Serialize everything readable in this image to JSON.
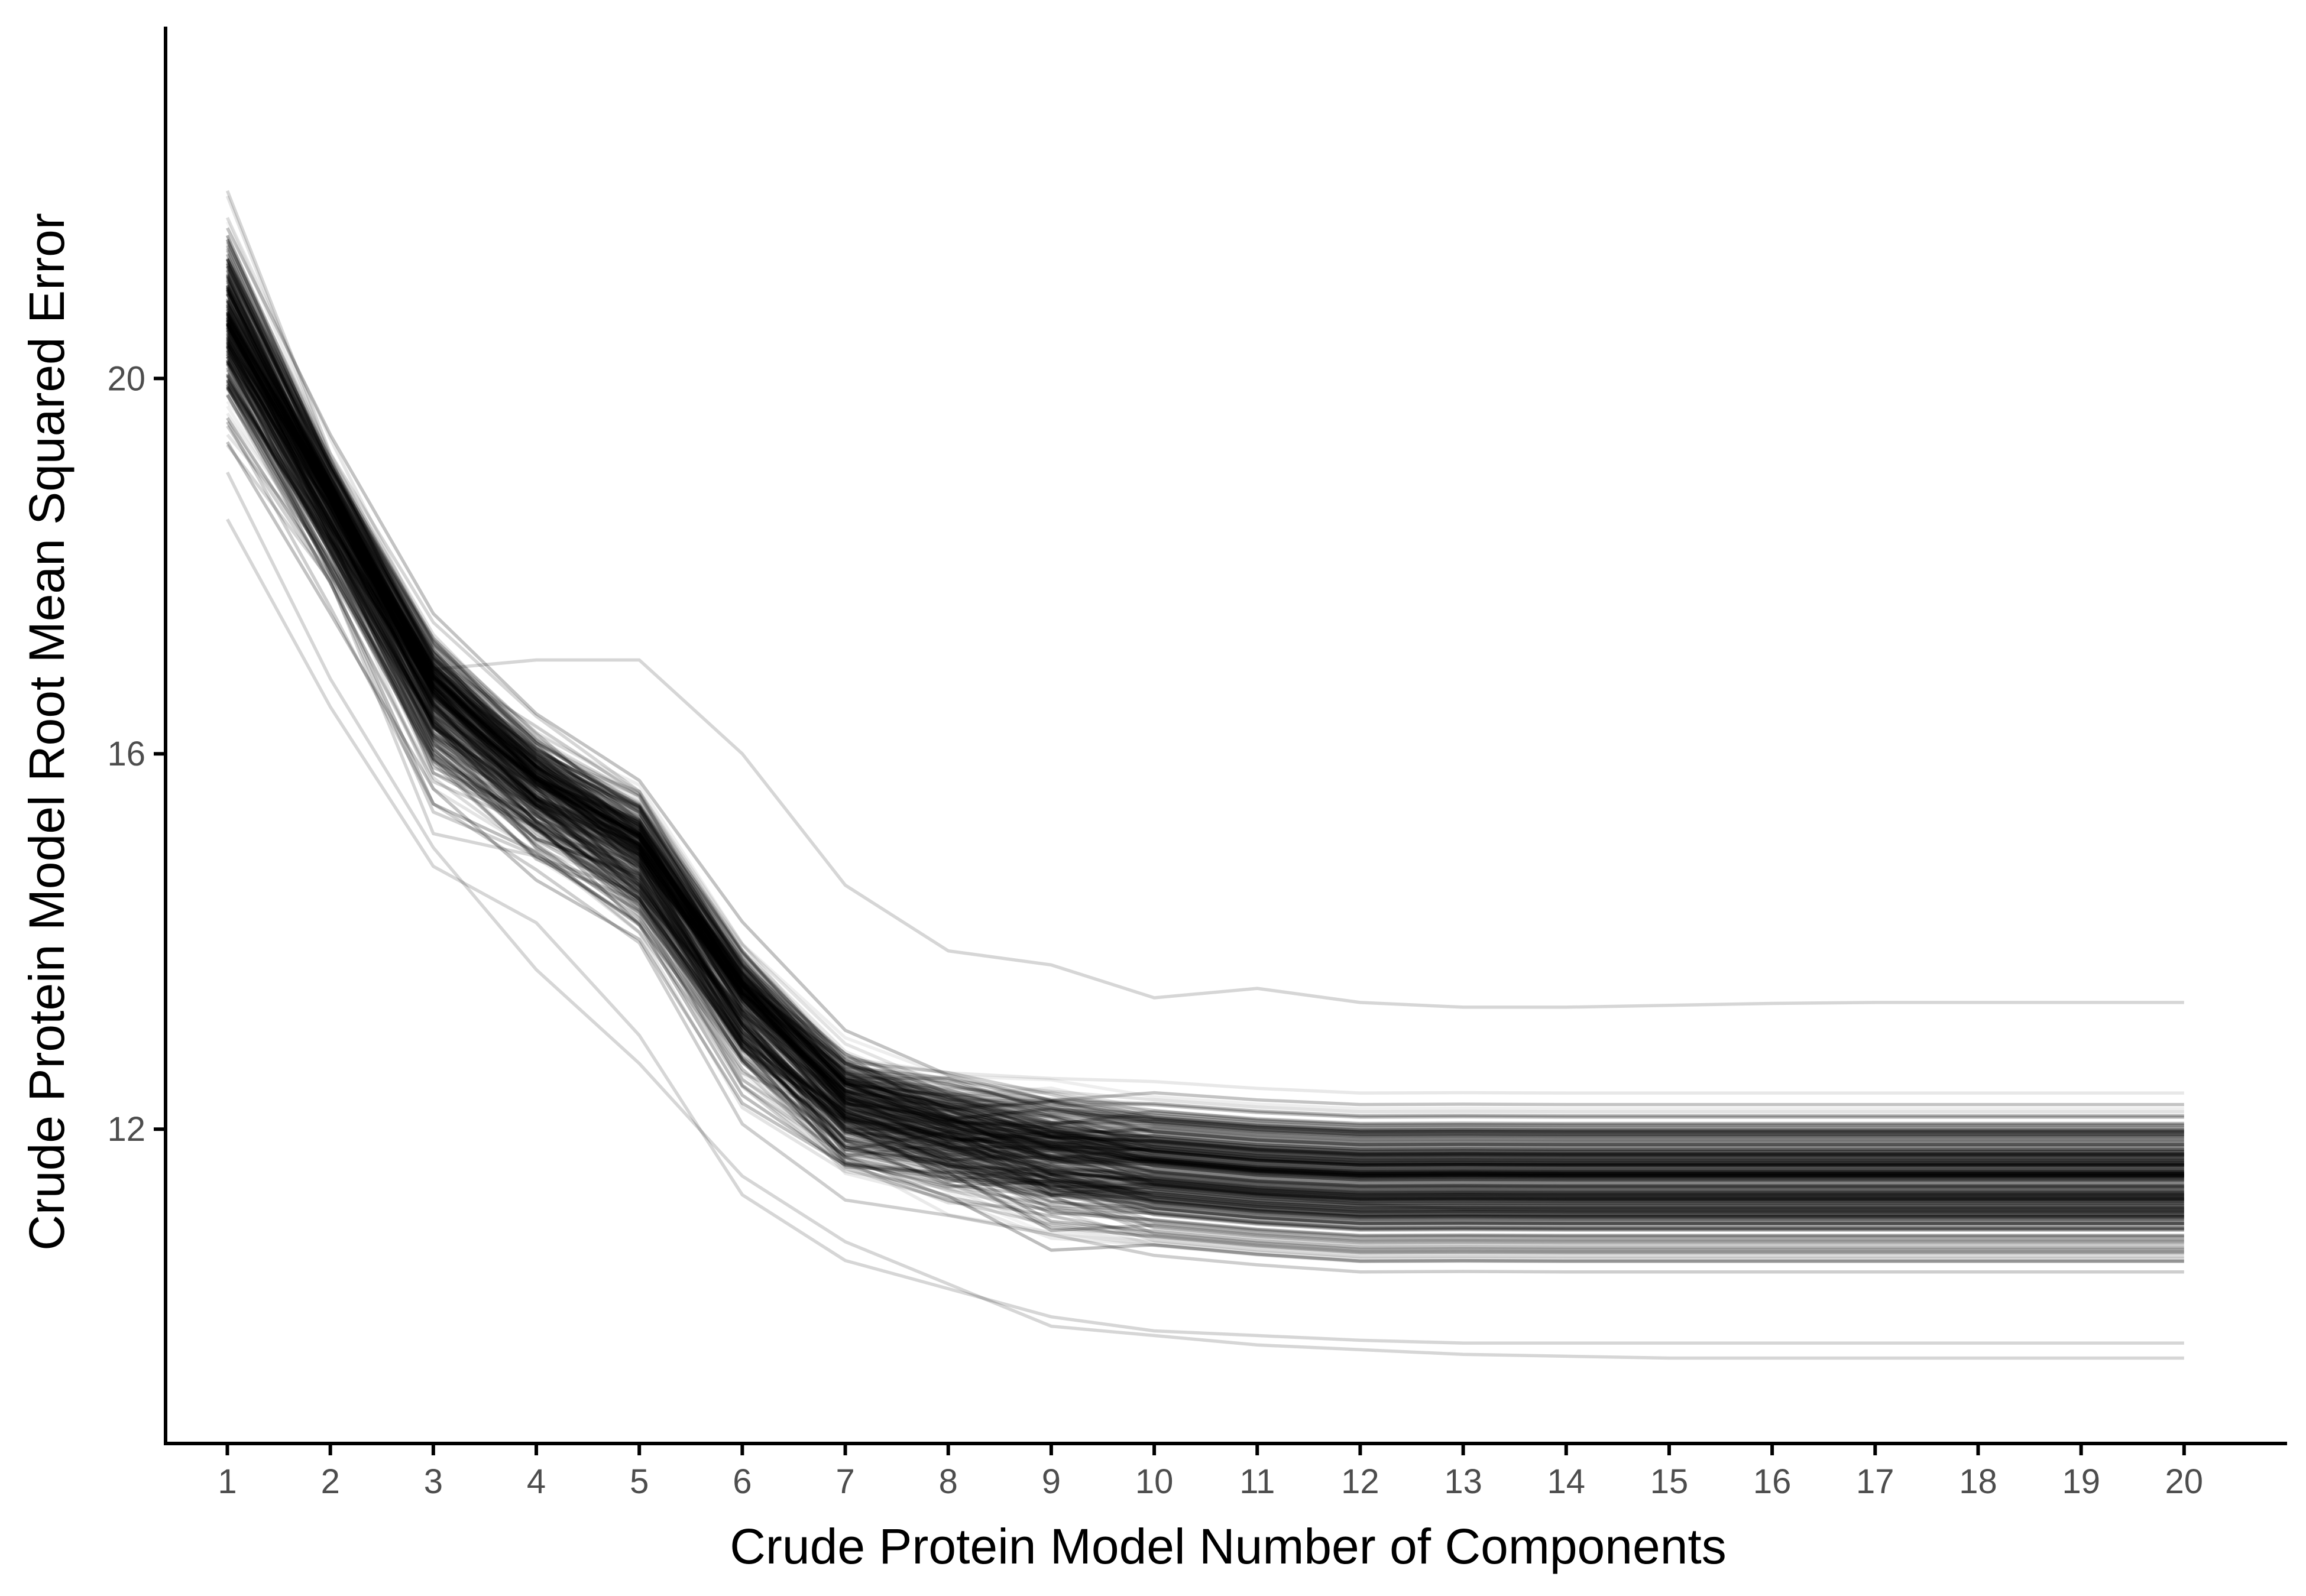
{
  "chart_data": {
    "type": "line",
    "title": "",
    "xlabel": "Crude Protein Model Number of Components",
    "ylabel": "Crude Protein Model Root Mean Squared Error",
    "x": [
      1,
      2,
      3,
      4,
      5,
      6,
      7,
      8,
      9,
      10,
      11,
      12,
      13,
      14,
      15,
      16,
      17,
      18,
      19,
      20
    ],
    "x_ticks": [
      "1",
      "2",
      "3",
      "4",
      "5",
      "6",
      "7",
      "8",
      "9",
      "10",
      "11",
      "12",
      "13",
      "14",
      "15",
      "16",
      "17",
      "18",
      "19",
      "20"
    ],
    "y_ticks": [
      12,
      16,
      20
    ],
    "y_tick_labels": [
      "12",
      "16",
      "20"
    ],
    "xlim": [
      0.4,
      21.0
    ],
    "ylim": [
      8.65,
      23.75
    ],
    "grid": false,
    "legend": "none",
    "line_color": "#000000",
    "line_opacity_range": [
      0.04,
      0.26
    ],
    "series_count": 320,
    "bundle_profile": {
      "x": [
        1,
        2,
        3,
        4,
        5,
        6,
        7,
        8,
        9,
        10,
        11,
        12,
        13,
        14,
        15,
        16,
        17,
        18,
        19,
        20
      ],
      "median": [
        20.6,
        18.7,
        16.7,
        15.7,
        15.0,
        13.4,
        12.3,
        12.0,
        11.8,
        11.65,
        11.55,
        11.5,
        11.48,
        11.47,
        11.47,
        11.47,
        11.47,
        11.47,
        11.47,
        11.47
      ],
      "upper": [
        22.8,
        19.8,
        18.0,
        17.0,
        16.5,
        14.8,
        13.7,
        13.4,
        13.3,
        13.2,
        13.15,
        13.1,
        13.05,
        13.05,
        13.05,
        13.05,
        13.05,
        13.05,
        13.05,
        13.05
      ],
      "lower": [
        18.5,
        16.6,
        14.3,
        13.8,
        12.9,
        11.2,
        10.5,
        10.2,
        9.8,
        9.7,
        9.6,
        9.5,
        9.45,
        9.4,
        9.4,
        9.4,
        9.4,
        9.4,
        9.4,
        9.4
      ]
    },
    "highlighted_series": [
      {
        "values": [
          19.9,
          18.3,
          16.9,
          17.0,
          17.0,
          16.0,
          14.6,
          13.9,
          13.75,
          13.4,
          13.5,
          13.35,
          13.3,
          13.3,
          13.32,
          13.34,
          13.35,
          13.35,
          13.35,
          13.35
        ]
      },
      {
        "values": [
          18.5,
          16.5,
          14.8,
          14.2,
          13.0,
          11.3,
          10.6,
          10.3,
          10.0,
          9.85,
          9.8,
          9.75,
          9.72,
          9.72,
          9.72,
          9.72,
          9.72,
          9.72,
          9.72,
          9.72
        ]
      },
      {
        "values": [
          19.0,
          16.8,
          15.0,
          13.7,
          12.7,
          11.5,
          10.8,
          10.35,
          9.9,
          9.8,
          9.7,
          9.65,
          9.6,
          9.58,
          9.56,
          9.56,
          9.56,
          9.56,
          9.56,
          9.56
        ]
      },
      {
        "values": [
          21.2,
          19.0,
          16.3,
          15.0,
          14.1,
          12.6,
          12.1,
          11.9,
          11.6,
          11.4,
          11.3,
          11.2,
          11.15,
          11.15,
          11.15,
          11.15,
          11.15,
          11.15,
          11.15,
          11.15
        ]
      },
      {
        "values": [
          22.0,
          19.2,
          17.4,
          16.4,
          15.6,
          13.9,
          12.7,
          12.4,
          12.3,
          12.2,
          12.1,
          12.05,
          12.05,
          12.05,
          12.05,
          12.05,
          12.05,
          12.05,
          12.05,
          12.05
        ]
      }
    ]
  }
}
